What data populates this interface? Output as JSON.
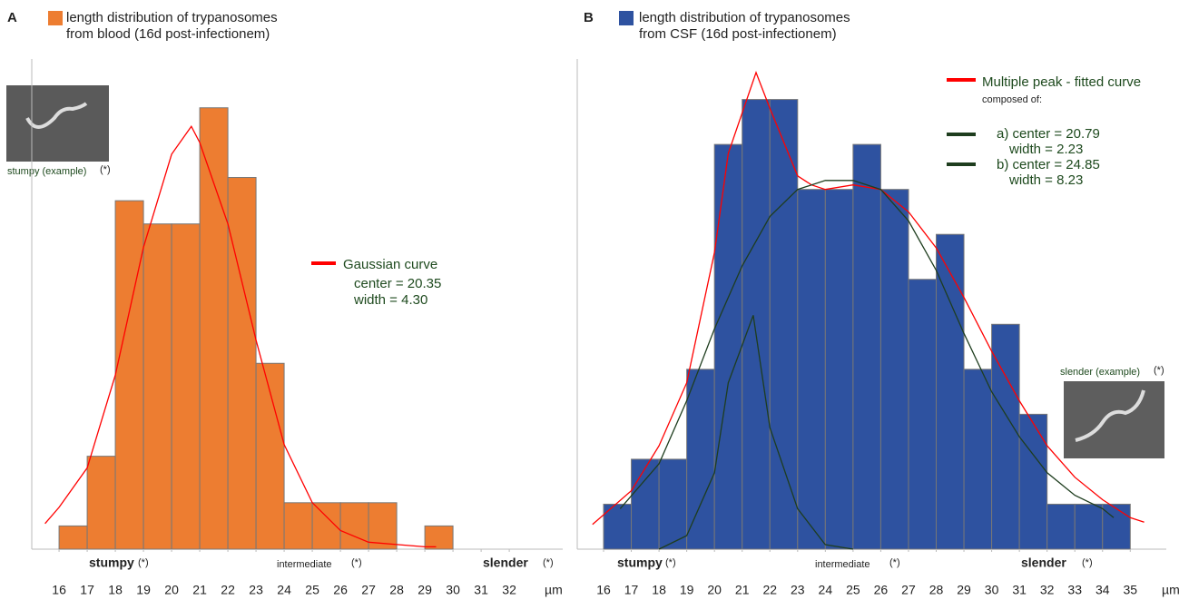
{
  "chart_data": [
    {
      "type": "histogram",
      "panel": "A",
      "title_lines": [
        "length distribution of trypanosomes",
        "from blood (16d post-infectionem)"
      ],
      "color": "#ed7d31",
      "bins": [
        16,
        17,
        18,
        19,
        20,
        21,
        22,
        23,
        24,
        25,
        26,
        27,
        28,
        29,
        30
      ],
      "counts": [
        1,
        4,
        15,
        14,
        14,
        19,
        16,
        8,
        2,
        2,
        2,
        2,
        0,
        1
      ],
      "xlim": [
        15.03,
        33.9
      ],
      "xticks": [
        16,
        17,
        18,
        19,
        20,
        21,
        22,
        23,
        24,
        25,
        26,
        27,
        28,
        29,
        30,
        31,
        32
      ],
      "x_unit": "µm",
      "ylim": [
        0,
        21.1
      ],
      "curves": [
        {
          "name": "Gaussian curve",
          "color": "#ff0000",
          "notes": [
            "center = 20.35",
            "width = 4.30"
          ],
          "x": [
            15.5,
            16,
            17,
            18,
            19,
            20,
            20.7,
            21,
            22,
            23,
            24,
            25,
            26,
            27,
            28,
            29,
            29.4
          ],
          "y": [
            1.1,
            1.8,
            3.5,
            7.5,
            13,
            17,
            18.2,
            17.5,
            14,
            9,
            4.5,
            2,
            0.8,
            0.3,
            0.2,
            0.1,
            0.1
          ]
        }
      ],
      "annotations": {
        "stumpy": "stumpy",
        "intermediate": "intermediate",
        "slender": "slender",
        "asterisk": "(*)",
        "example": "stumpy (example)"
      }
    },
    {
      "type": "histogram",
      "panel": "B",
      "title_lines": [
        "length distribution of trypanosomes",
        "from CSF (16d post-infectionem)"
      ],
      "color": "#2e52a0",
      "bins": [
        16,
        17,
        18,
        19,
        20,
        21,
        22,
        23,
        24,
        25,
        26,
        27,
        28,
        29,
        30,
        31,
        32,
        33,
        34,
        35
      ],
      "counts": [
        1,
        2,
        2,
        4,
        9,
        10,
        10,
        8,
        8,
        9,
        8,
        6,
        7,
        4,
        5,
        3,
        1,
        1,
        1
      ],
      "xlim": [
        15.05,
        36.3
      ],
      "xticks": [
        16,
        17,
        18,
        19,
        20,
        21,
        22,
        23,
        24,
        25,
        26,
        27,
        28,
        29,
        30,
        31,
        32,
        33,
        34,
        35
      ],
      "x_unit": "µm",
      "ylim": [
        0,
        10.9
      ],
      "curves": [
        {
          "name": "Multiple peak - fitted curve",
          "color": "#ff0000",
          "notes": [
            "composed of:"
          ],
          "x": [
            15.6,
            17,
            18,
            19,
            20,
            20.5,
            21.5,
            22,
            23,
            23.5,
            24,
            25,
            26,
            27,
            28,
            29,
            30,
            31,
            32,
            33,
            34,
            35,
            35.5
          ],
          "y": [
            0.55,
            1.3,
            2.3,
            3.7,
            6.6,
            8.8,
            10.6,
            9.8,
            8.3,
            8.1,
            8.0,
            8.1,
            8.0,
            7.5,
            6.7,
            5.6,
            4.4,
            3.3,
            2.3,
            1.6,
            1.1,
            0.7,
            0.6
          ]
        },
        {
          "name": "a) center = 20.79",
          "color": "#1e3d1e",
          "notes": [
            "width = 2.23"
          ],
          "x": [
            18,
            19,
            20,
            20.5,
            21.4,
            22,
            23,
            24,
            25
          ],
          "y": [
            0,
            0.3,
            1.7,
            3.7,
            5.2,
            2.7,
            0.9,
            0.1,
            0
          ]
        },
        {
          "name": "b) center = 24.85",
          "color": "#1e3d1e",
          "notes": [
            "width = 8.23"
          ],
          "x": [
            16.6,
            18,
            19,
            20,
            21,
            22,
            23,
            24,
            25,
            26,
            27,
            28,
            29,
            30,
            31,
            32,
            33,
            34,
            34.4
          ],
          "y": [
            0.9,
            1.9,
            3.3,
            4.9,
            6.3,
            7.4,
            8.0,
            8.2,
            8.2,
            8.0,
            7.3,
            6.2,
            4.8,
            3.5,
            2.5,
            1.7,
            1.2,
            0.9,
            0.7
          ]
        }
      ],
      "annotations": {
        "stumpy": "stumpy",
        "intermediate": "intermediate",
        "slender": "slender",
        "asterisk": "(*)",
        "example": "slender (example)"
      }
    }
  ]
}
